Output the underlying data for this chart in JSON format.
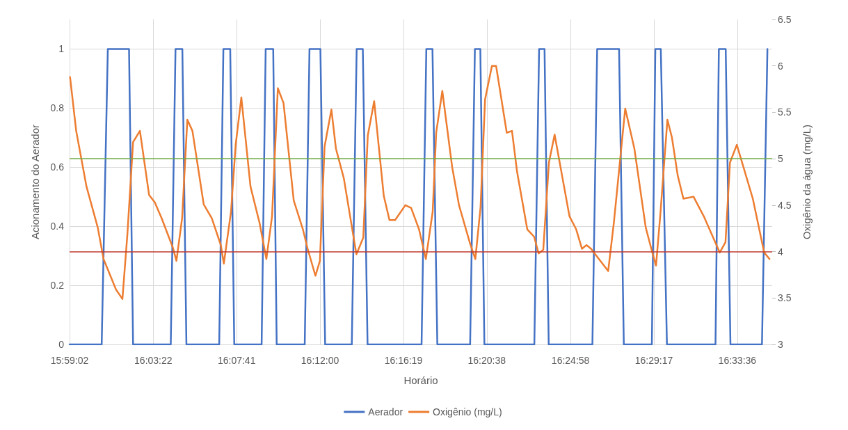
{
  "chart_data": {
    "type": "line",
    "xlabel": "Horário",
    "ylabel": "Acionamento do Aerador",
    "y2label": "Oxigênio da água (mg/L)",
    "xlim": [
      15.98389,
      16.5901
    ],
    "xticks": [
      {
        "value": 15.98389,
        "label": "15:59:02"
      },
      {
        "value": 16.05611,
        "label": "16:03:22"
      },
      {
        "value": 16.12806,
        "label": "16:07:41"
      },
      {
        "value": 16.2,
        "label": "16:12:00"
      },
      {
        "value": 16.27194,
        "label": "16:16:19"
      },
      {
        "value": 16.34389,
        "label": "16:20:38"
      },
      {
        "value": 16.41611,
        "label": "16:24:58"
      },
      {
        "value": 16.48806,
        "label": "16:29:17"
      },
      {
        "value": 16.56,
        "label": "16:33:36"
      }
    ],
    "ylim": [
      0,
      1.1
    ],
    "yticks": [
      0,
      0.2,
      0.4,
      0.6,
      0.8,
      1
    ],
    "y2lim": [
      3,
      6.5
    ],
    "y2ticks": [
      3,
      3.5,
      4,
      4.5,
      5,
      5.5,
      6,
      6.5
    ],
    "grid": true,
    "legend": "bottom",
    "marker": "none",
    "line_style": "solid",
    "ref_lines": [
      {
        "axis": "y2",
        "value": 5,
        "color": "#70ad47"
      },
      {
        "axis": "y2",
        "value": 4,
        "color": "#c0392b"
      }
    ],
    "series": [
      {
        "name": "Aerador",
        "color": "#4472c4",
        "x": [
          15.9839,
          16.0116,
          16.0169,
          16.0352,
          16.0387,
          16.0712,
          16.0753,
          16.0812,
          16.0847,
          16.113,
          16.1166,
          16.1225,
          16.126,
          16.1496,
          16.1531,
          16.1596,
          16.1626,
          16.1868,
          16.1909,
          16.2003,
          16.2044,
          16.2274,
          16.2316,
          16.2369,
          16.241,
          16.2876,
          16.2917,
          16.297,
          16.3012,
          16.3295,
          16.3336,
          16.3383,
          16.3418,
          16.3849,
          16.389,
          16.3937,
          16.3973,
          16.435,
          16.4391,
          16.458,
          16.4621,
          16.4863,
          16.4893,
          16.494,
          16.4993,
          16.5412,
          16.5441,
          16.55,
          16.5541,
          16.5813,
          16.586
        ],
        "values": [
          0,
          0,
          1,
          1,
          0,
          0,
          1,
          1,
          0,
          0,
          1,
          1,
          0,
          0,
          1,
          1,
          0,
          0,
          1,
          1,
          0,
          0,
          1,
          1,
          0,
          0,
          1,
          1,
          0,
          0,
          1,
          1,
          0,
          0,
          1,
          1,
          0,
          0,
          1,
          1,
          0,
          0,
          1,
          1,
          0,
          0,
          1,
          1,
          0,
          0,
          1
        ]
      },
      {
        "name": "Oxigênio (mg/L)",
        "color": "#ed7d31",
        "axis": "y2",
        "x": [
          15.9843,
          15.9896,
          15.9985,
          16.0082,
          16.0132,
          16.024,
          16.0295,
          16.0338,
          16.0387,
          16.0446,
          16.0525,
          16.0574,
          16.0633,
          16.0731,
          16.0761,
          16.081,
          16.0855,
          16.0899,
          16.0996,
          16.1066,
          16.1144,
          16.117,
          16.1232,
          16.1272,
          16.1321,
          16.14,
          16.1478,
          16.1537,
          16.1586,
          16.1636,
          16.1685,
          16.1773,
          16.1852,
          16.1891,
          16.196,
          16.1999,
          16.2039,
          16.2098,
          16.2137,
          16.2205,
          16.2314,
          16.2373,
          16.2412,
          16.2467,
          16.255,
          16.2599,
          16.2648,
          16.2736,
          16.2786,
          16.2854,
          16.2913,
          16.2972,
          16.3002,
          16.3055,
          16.314,
          16.3199,
          16.3296,
          16.334,
          16.3385,
          16.3424,
          16.3483,
          16.3519,
          16.3611,
          16.3656,
          16.37,
          16.3788,
          16.3847,
          16.3886,
          16.3926,
          16.3975,
          16.4024,
          16.4152,
          16.421,
          16.426,
          16.4299,
          16.4338,
          16.4486,
          16.4535,
          16.4633,
          16.4712,
          16.481,
          16.4869,
          16.4899,
          16.4938,
          16.4997,
          16.5036,
          16.5086,
          16.5135,
          16.5223,
          16.5311,
          16.5449,
          16.5498,
          16.5537,
          16.5596,
          16.5734,
          16.5832,
          16.5878
        ],
        "values": [
          5.88,
          5.3,
          4.7,
          4.26,
          3.92,
          3.59,
          3.49,
          4.19,
          5.18,
          5.3,
          4.61,
          4.53,
          4.36,
          4.04,
          3.9,
          4.36,
          5.42,
          5.3,
          4.51,
          4.36,
          4.07,
          3.87,
          4.43,
          5.15,
          5.66,
          4.7,
          4.31,
          3.92,
          4.38,
          5.76,
          5.6,
          4.55,
          4.24,
          4.04,
          3.74,
          3.9,
          5.13,
          5.53,
          5.11,
          4.79,
          3.97,
          4.15,
          5.25,
          5.62,
          4.6,
          4.34,
          4.34,
          4.5,
          4.47,
          4.24,
          3.92,
          4.43,
          5.28,
          5.73,
          4.91,
          4.5,
          4.08,
          3.92,
          4.48,
          5.64,
          6.0,
          6.0,
          5.28,
          5.3,
          4.86,
          4.24,
          4.16,
          3.98,
          4.02,
          4.96,
          5.26,
          4.38,
          4.24,
          4.03,
          4.07,
          4.03,
          3.79,
          4.31,
          5.54,
          5.11,
          4.26,
          3.98,
          3.85,
          4.43,
          5.42,
          5.23,
          4.82,
          4.57,
          4.59,
          4.38,
          3.99,
          4.1,
          4.96,
          5.15,
          4.57,
          3.99,
          3.92
        ]
      }
    ]
  }
}
